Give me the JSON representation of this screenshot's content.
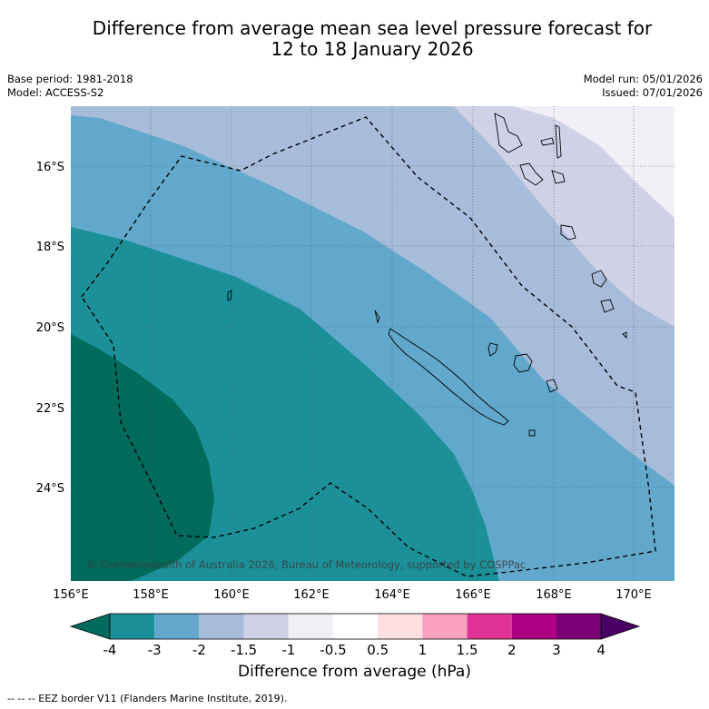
{
  "title": {
    "line1": "Difference from average mean sea level pressure forecast for",
    "line2": "12 to 18 January 2026"
  },
  "meta": {
    "base_period": "Base period: 1981-2018",
    "model": "Model: ACCESS-S2",
    "model_run": "Model run: 05/01/2026",
    "issued": "Issued: 07/01/2026"
  },
  "map": {
    "lat_labels": [
      "16°S",
      "18°S",
      "20°S",
      "22°S",
      "24°S"
    ],
    "lon_labels": [
      "156°E",
      "158°E",
      "160°E",
      "162°E",
      "164°E",
      "166°E",
      "168°E",
      "170°E"
    ],
    "copyright": "© Commonwealth of Australia 2026, Bureau of Meteorology, supported by COSPPac"
  },
  "colorbar": {
    "ticks": [
      "-4",
      "-3",
      "-2",
      "-1.5",
      "-1",
      "-0.5",
      "0.5",
      "1",
      "1.5",
      "2",
      "3",
      "4"
    ],
    "colors": {
      "under": "#006b5a",
      "bins": [
        "#1b9099",
        "#62a8cd",
        "#a7bcdb",
        "#cfd2e6",
        "#f2eef6",
        "#ffffff",
        "#ffdfdf",
        "#f7a0c0",
        "#df3496",
        "#ad0083",
        "#7b0078"
      ],
      "over": "#4b0066"
    },
    "label": "Difference from average (hPa)"
  },
  "footnote": "--  --  -- EEZ border V11 (Flanders Marine Institute, 2019)."
}
